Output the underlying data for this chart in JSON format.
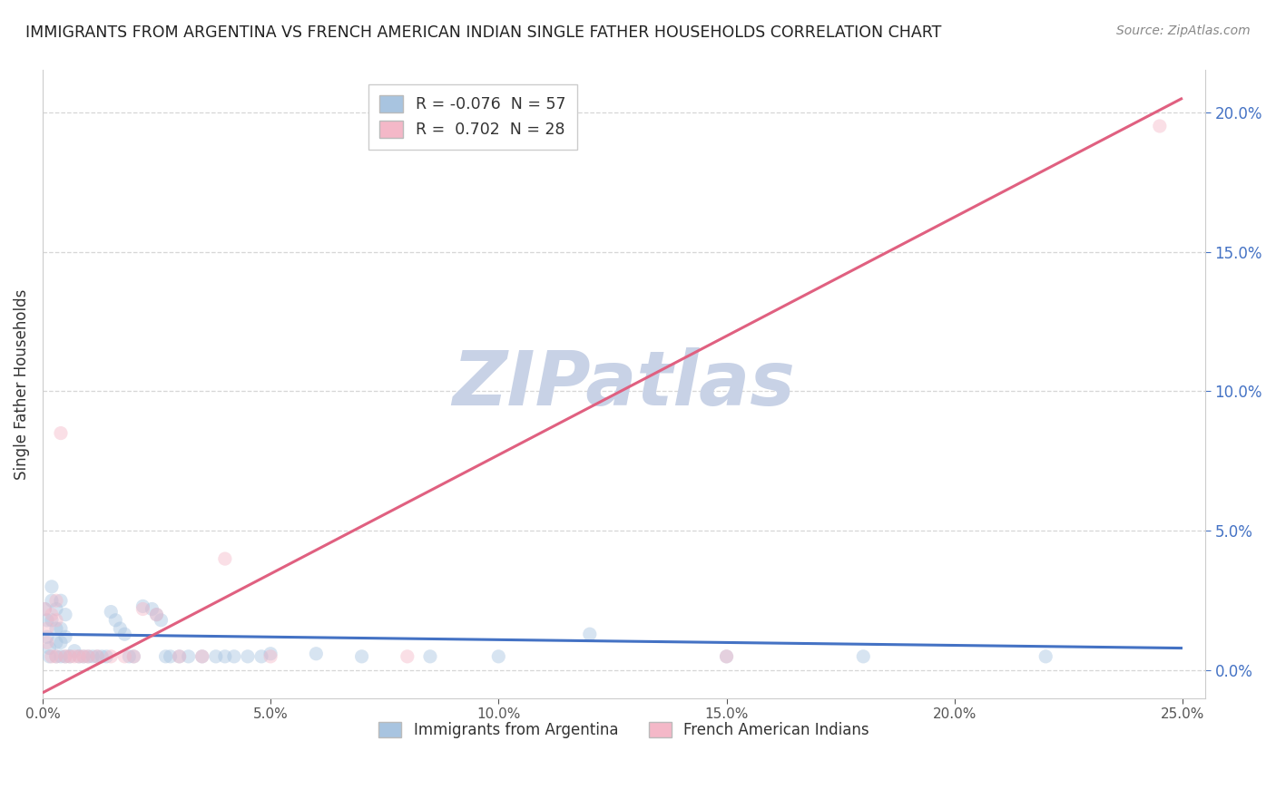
{
  "title": "IMMIGRANTS FROM ARGENTINA VS FRENCH AMERICAN INDIAN SINGLE FATHER HOUSEHOLDS CORRELATION CHART",
  "source": "Source: ZipAtlas.com",
  "ylabel": "Single Father Households",
  "watermark": "ZIPatlas",
  "legend_entries": [
    {
      "label_r": "R = ",
      "r_val": "-0.076",
      "label_n": "  N = ",
      "n_val": "57",
      "color": "#a8c4e0"
    },
    {
      "label_r": "R =  ",
      "r_val": "0.702",
      "label_n": "  N = ",
      "n_val": "28",
      "color": "#f4b8c8"
    }
  ],
  "legend_bottom": [
    {
      "label": "Immigrants from Argentina",
      "color": "#a8c4e0"
    },
    {
      "label": "French American Indians",
      "color": "#f4b8c8"
    }
  ],
  "xlim": [
    0.0,
    0.255
  ],
  "ylim": [
    -0.01,
    0.215
  ],
  "x_ticks": [
    0.0,
    0.05,
    0.1,
    0.15,
    0.2,
    0.25
  ],
  "y_ticks_right": [
    0.0,
    0.05,
    0.1,
    0.15,
    0.2
  ],
  "scatter_blue": [
    [
      0.0005,
      0.022
    ],
    [
      0.001,
      0.018
    ],
    [
      0.001,
      0.012
    ],
    [
      0.0015,
      0.008
    ],
    [
      0.0015,
      0.005
    ],
    [
      0.002,
      0.03
    ],
    [
      0.002,
      0.025
    ],
    [
      0.002,
      0.018
    ],
    [
      0.003,
      0.022
    ],
    [
      0.003,
      0.015
    ],
    [
      0.003,
      0.01
    ],
    [
      0.003,
      0.005
    ],
    [
      0.004,
      0.025
    ],
    [
      0.004,
      0.015
    ],
    [
      0.004,
      0.01
    ],
    [
      0.004,
      0.005
    ],
    [
      0.005,
      0.02
    ],
    [
      0.005,
      0.012
    ],
    [
      0.005,
      0.005
    ],
    [
      0.006,
      0.005
    ],
    [
      0.007,
      0.007
    ],
    [
      0.008,
      0.005
    ],
    [
      0.009,
      0.005
    ],
    [
      0.01,
      0.005
    ],
    [
      0.011,
      0.005
    ],
    [
      0.012,
      0.005
    ],
    [
      0.013,
      0.005
    ],
    [
      0.014,
      0.005
    ],
    [
      0.015,
      0.021
    ],
    [
      0.016,
      0.018
    ],
    [
      0.017,
      0.015
    ],
    [
      0.018,
      0.013
    ],
    [
      0.019,
      0.005
    ],
    [
      0.02,
      0.005
    ],
    [
      0.022,
      0.023
    ],
    [
      0.024,
      0.022
    ],
    [
      0.025,
      0.02
    ],
    [
      0.026,
      0.018
    ],
    [
      0.027,
      0.005
    ],
    [
      0.028,
      0.005
    ],
    [
      0.03,
      0.005
    ],
    [
      0.032,
      0.005
    ],
    [
      0.035,
      0.005
    ],
    [
      0.038,
      0.005
    ],
    [
      0.04,
      0.005
    ],
    [
      0.042,
      0.005
    ],
    [
      0.045,
      0.005
    ],
    [
      0.048,
      0.005
    ],
    [
      0.05,
      0.006
    ],
    [
      0.06,
      0.006
    ],
    [
      0.07,
      0.005
    ],
    [
      0.085,
      0.005
    ],
    [
      0.1,
      0.005
    ],
    [
      0.12,
      0.013
    ],
    [
      0.15,
      0.005
    ],
    [
      0.18,
      0.005
    ],
    [
      0.22,
      0.005
    ]
  ],
  "scatter_pink": [
    [
      0.0005,
      0.022
    ],
    [
      0.001,
      0.015
    ],
    [
      0.001,
      0.01
    ],
    [
      0.002,
      0.02
    ],
    [
      0.002,
      0.005
    ],
    [
      0.003,
      0.025
    ],
    [
      0.003,
      0.018
    ],
    [
      0.003,
      0.005
    ],
    [
      0.004,
      0.085
    ],
    [
      0.005,
      0.005
    ],
    [
      0.006,
      0.005
    ],
    [
      0.007,
      0.005
    ],
    [
      0.008,
      0.005
    ],
    [
      0.009,
      0.005
    ],
    [
      0.01,
      0.005
    ],
    [
      0.012,
      0.005
    ],
    [
      0.015,
      0.005
    ],
    [
      0.018,
      0.005
    ],
    [
      0.02,
      0.005
    ],
    [
      0.022,
      0.022
    ],
    [
      0.025,
      0.02
    ],
    [
      0.03,
      0.005
    ],
    [
      0.035,
      0.005
    ],
    [
      0.04,
      0.04
    ],
    [
      0.05,
      0.005
    ],
    [
      0.08,
      0.005
    ],
    [
      0.15,
      0.005
    ],
    [
      0.245,
      0.195
    ]
  ],
  "blue_line": [
    0.0,
    0.013,
    0.25,
    0.008
  ],
  "pink_line": [
    0.0,
    -0.008,
    0.25,
    0.205
  ],
  "blue_dot_color": "#a8c4e0",
  "pink_dot_color": "#f4b8c8",
  "blue_line_color": "#4472c4",
  "pink_line_color": "#e06080",
  "grid_color": "#cccccc",
  "bg_color": "#ffffff",
  "title_color": "#222222",
  "source_color": "#888888",
  "watermark_color_r": 200,
  "watermark_color_g": 210,
  "watermark_color_b": 230,
  "dot_size": 120,
  "dot_alpha": 0.45,
  "line_width": 2.2
}
